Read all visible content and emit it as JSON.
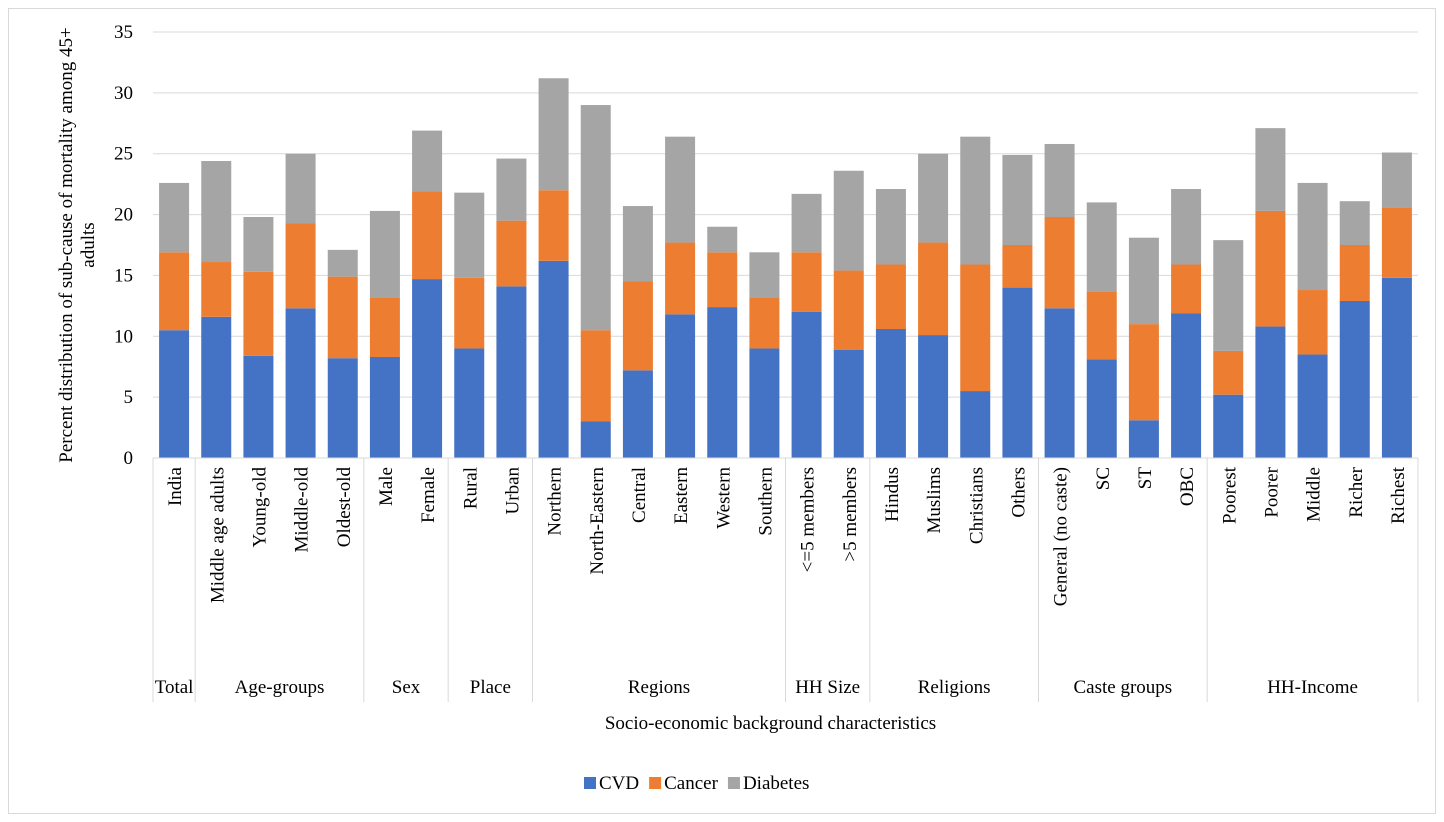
{
  "chart_data": {
    "type": "bar",
    "stacked": true,
    "xlabel": "Socio-economic background characteristics",
    "ylabel": "Percent distribution of sub-cause of mortality among 45+ adults",
    "ylim": [
      0,
      35
    ],
    "yticks": [
      "0",
      "5",
      "10",
      "15",
      "20",
      "25",
      "30",
      "35"
    ],
    "grid": true,
    "legend_position": "bottom",
    "categories": [
      "India",
      "Middle age adults",
      "Young-old",
      "Middle-old",
      "Oldest-old",
      "Male",
      "Female",
      "Rural",
      "Urban",
      "Northern",
      "North-Eastern",
      "Central",
      "Eastern",
      "Western",
      "Southern",
      "<=5 members",
      ">5 members",
      "Hindus",
      "Muslims",
      "Christians",
      "Others",
      "General (no caste)",
      "SC",
      "ST",
      "OBC",
      "Poorest",
      "Poorer",
      "Middle",
      "Richer",
      "Richest"
    ],
    "groups": [
      {
        "label": "Total",
        "count": 1
      },
      {
        "label": "Age-groups",
        "count": 4
      },
      {
        "label": "Sex",
        "count": 2
      },
      {
        "label": "Place",
        "count": 2
      },
      {
        "label": "Regions",
        "count": 6
      },
      {
        "label": "HH Size",
        "count": 2
      },
      {
        "label": "Religions",
        "count": 4
      },
      {
        "label": "Caste groups",
        "count": 4
      },
      {
        "label": "HH-Income",
        "count": 5
      }
    ],
    "series": [
      {
        "name": "CVD",
        "color": "#4472C4",
        "values": [
          10.5,
          11.6,
          8.4,
          12.3,
          8.2,
          8.3,
          14.7,
          9.0,
          14.1,
          16.2,
          3.0,
          7.2,
          11.8,
          12.4,
          9.0,
          12.0,
          8.9,
          10.6,
          10.1,
          5.5,
          14.0,
          12.3,
          8.1,
          3.1,
          11.9,
          5.2,
          10.8,
          8.5,
          12.9,
          14.8
        ]
      },
      {
        "name": "Cancer",
        "color": "#ED7D31",
        "values": [
          6.4,
          4.5,
          6.9,
          7.0,
          6.7,
          4.9,
          7.2,
          5.8,
          5.4,
          5.8,
          7.5,
          7.3,
          5.9,
          4.5,
          4.2,
          4.9,
          6.5,
          5.3,
          7.6,
          10.4,
          3.5,
          7.5,
          5.6,
          7.9,
          4.0,
          3.6,
          9.5,
          5.3,
          4.6,
          5.8
        ]
      },
      {
        "name": "Diabetes",
        "color": "#A5A5A5",
        "values": [
          5.7,
          8.3,
          4.5,
          5.7,
          2.2,
          7.1,
          5.0,
          7.0,
          5.1,
          9.2,
          18.5,
          6.2,
          8.7,
          2.1,
          3.7,
          4.8,
          8.2,
          6.2,
          7.3,
          10.5,
          7.4,
          6.0,
          7.3,
          7.1,
          6.2,
          9.1,
          6.8,
          8.8,
          3.6,
          4.5
        ]
      }
    ]
  }
}
